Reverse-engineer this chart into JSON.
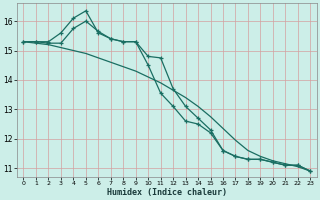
{
  "xlabel": "Humidex (Indice chaleur)",
  "bg_color": "#cceee8",
  "grid_color": "#d4a0a0",
  "line_color": "#1a6e62",
  "xlim": [
    -0.5,
    23.5
  ],
  "ylim": [
    10.7,
    16.6
  ],
  "yticks": [
    11,
    12,
    13,
    14,
    15,
    16
  ],
  "xticks": [
    0,
    1,
    2,
    3,
    4,
    5,
    6,
    7,
    8,
    9,
    10,
    11,
    12,
    13,
    14,
    15,
    16,
    17,
    18,
    19,
    20,
    21,
    22,
    23
  ],
  "line1_x": [
    0,
    1,
    2,
    3,
    4,
    5,
    6,
    7,
    8,
    9,
    10,
    11,
    12,
    13,
    14,
    15,
    16,
    17,
    18,
    19,
    20,
    21,
    22,
    23
  ],
  "line1_y": [
    15.3,
    15.3,
    15.25,
    15.25,
    15.75,
    16.0,
    15.65,
    15.4,
    15.3,
    15.3,
    14.8,
    14.75,
    13.7,
    13.1,
    12.7,
    12.3,
    11.6,
    11.4,
    11.3,
    11.3,
    11.2,
    11.1,
    11.1,
    10.9
  ],
  "line2_x": [
    0,
    1,
    2,
    3,
    4,
    5,
    6,
    7,
    8,
    9,
    10,
    11,
    12,
    13,
    14,
    15,
    16,
    17,
    18,
    19,
    20,
    21,
    22,
    23
  ],
  "line2_y": [
    15.3,
    15.25,
    15.2,
    15.1,
    15.0,
    14.9,
    14.75,
    14.6,
    14.45,
    14.3,
    14.1,
    13.9,
    13.65,
    13.4,
    13.1,
    12.75,
    12.35,
    11.95,
    11.6,
    11.4,
    11.25,
    11.15,
    11.05,
    10.9
  ],
  "line3_x": [
    0,
    1,
    2,
    3,
    4,
    5,
    6,
    7,
    8,
    9,
    10,
    11,
    12,
    13,
    14,
    15,
    16,
    17,
    18,
    19,
    20,
    21,
    22,
    23
  ],
  "line3_y": [
    15.3,
    15.3,
    15.3,
    15.6,
    16.1,
    16.35,
    15.6,
    15.4,
    15.3,
    15.3,
    14.5,
    13.55,
    13.1,
    12.6,
    12.5,
    12.2,
    11.6,
    11.4,
    11.3,
    11.3,
    11.2,
    11.1,
    11.1,
    10.9
  ]
}
